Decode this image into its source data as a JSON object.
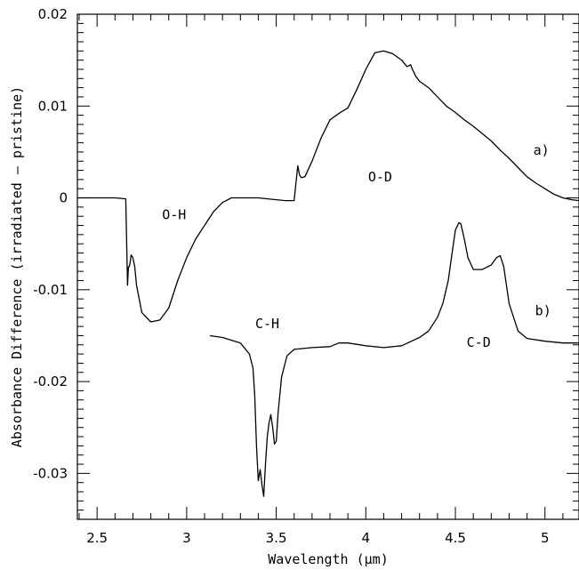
{
  "chart_data": {
    "type": "line",
    "title": "",
    "xlabel": "Wavelength (μm)",
    "ylabel": "Absorbance Difference (irradiated – pristine)",
    "xlim": [
      2.39,
      5.19
    ],
    "ylim": [
      -0.035,
      0.02
    ],
    "x_ticks": [
      {
        "value": 2.5,
        "label": "2.5"
      },
      {
        "value": 3.0,
        "label": "3"
      },
      {
        "value": 3.5,
        "label": "3.5"
      },
      {
        "value": 4.0,
        "label": "4"
      },
      {
        "value": 4.5,
        "label": "4.5"
      },
      {
        "value": 5.0,
        "label": "5"
      }
    ],
    "y_ticks": [
      {
        "value": 0.02,
        "label": "0.02"
      },
      {
        "value": 0.01,
        "label": "0.01"
      },
      {
        "value": 0.0,
        "label": "0"
      },
      {
        "value": -0.01,
        "label": "-0.01"
      },
      {
        "value": -0.02,
        "label": "-0.02"
      },
      {
        "value": -0.03,
        "label": "-0.03"
      }
    ],
    "grid": false,
    "series": [
      {
        "label": "a)",
        "x": [
          2.39,
          2.5,
          2.6,
          2.66,
          2.67,
          2.675,
          2.68,
          2.685,
          2.69,
          2.7,
          2.71,
          2.72,
          2.75,
          2.8,
          2.85,
          2.9,
          2.95,
          3.0,
          3.05,
          3.1,
          3.15,
          3.2,
          3.25,
          3.3,
          3.35,
          3.4,
          3.5,
          3.55,
          3.6,
          3.62,
          3.63,
          3.64,
          3.66,
          3.7,
          3.75,
          3.8,
          3.85,
          3.9,
          3.95,
          4.0,
          4.05,
          4.1,
          4.15,
          4.2,
          4.23,
          4.25,
          4.26,
          4.28,
          4.3,
          4.35,
          4.4,
          4.45,
          4.5,
          4.55,
          4.6,
          4.65,
          4.7,
          4.75,
          4.8,
          4.85,
          4.9,
          4.95,
          5.0,
          5.05,
          5.1,
          5.15,
          5.19
        ],
        "y": [
          0.0,
          0.0,
          0.0,
          -0.0001,
          -0.0095,
          -0.0075,
          -0.0075,
          -0.007,
          -0.0062,
          -0.0065,
          -0.0075,
          -0.0095,
          -0.0125,
          -0.0135,
          -0.0133,
          -0.012,
          -0.009,
          -0.0065,
          -0.0045,
          -0.003,
          -0.0015,
          -0.0005,
          0.0,
          0.0,
          0.0,
          0.0,
          -0.0002,
          -0.0003,
          -0.0003,
          0.0035,
          0.0025,
          0.0022,
          0.0023,
          0.004,
          0.0065,
          0.0085,
          0.0092,
          0.0098,
          0.0118,
          0.014,
          0.0158,
          0.016,
          0.0157,
          0.015,
          0.0143,
          0.0145,
          0.014,
          0.0132,
          0.0127,
          0.012,
          0.011,
          0.01,
          0.0093,
          0.0085,
          0.0078,
          0.007,
          0.0062,
          0.0052,
          0.0043,
          0.0033,
          0.0023,
          0.0016,
          0.001,
          0.0004,
          0.0,
          -0.0002,
          -0.0003
        ]
      },
      {
        "label": "b)",
        "x": [
          3.13,
          3.2,
          3.25,
          3.3,
          3.35,
          3.37,
          3.38,
          3.39,
          3.4,
          3.41,
          3.42,
          3.43,
          3.44,
          3.45,
          3.46,
          3.47,
          3.48,
          3.49,
          3.5,
          3.51,
          3.53,
          3.56,
          3.6,
          3.7,
          3.8,
          3.85,
          3.9,
          4.0,
          4.1,
          4.2,
          4.3,
          4.35,
          4.4,
          4.43,
          4.46,
          4.48,
          4.5,
          4.52,
          4.53,
          4.55,
          4.57,
          4.6,
          4.65,
          4.7,
          4.73,
          4.75,
          4.77,
          4.8,
          4.85,
          4.9,
          5.0,
          5.1,
          5.19
        ],
        "y": [
          -0.015,
          -0.0152,
          -0.0155,
          -0.0158,
          -0.017,
          -0.0185,
          -0.0215,
          -0.027,
          -0.0308,
          -0.0296,
          -0.0312,
          -0.0325,
          -0.029,
          -0.026,
          -0.0245,
          -0.0236,
          -0.025,
          -0.0268,
          -0.0265,
          -0.0235,
          -0.0195,
          -0.0172,
          -0.0165,
          -0.0163,
          -0.0162,
          -0.0158,
          -0.0158,
          -0.0161,
          -0.0163,
          -0.0161,
          -0.0152,
          -0.0145,
          -0.013,
          -0.0115,
          -0.009,
          -0.0062,
          -0.0035,
          -0.0027,
          -0.0028,
          -0.0045,
          -0.0065,
          -0.0078,
          -0.0078,
          -0.0073,
          -0.0065,
          -0.0063,
          -0.0075,
          -0.0115,
          -0.0145,
          -0.0153,
          -0.0156,
          -0.0158,
          -0.0158
        ]
      }
    ],
    "annotations": [
      {
        "text": "O-H",
        "x": 2.93,
        "y": -0.0023
      },
      {
        "text": "O-D",
        "x": 4.08,
        "y": 0.0018
      },
      {
        "text": "C-H",
        "x": 3.45,
        "y": -0.0142
      },
      {
        "text": "C-D",
        "x": 4.63,
        "y": -0.0162
      },
      {
        "text": "a)",
        "x": 4.98,
        "y": 0.0047
      },
      {
        "text": "b)",
        "x": 4.99,
        "y": -0.0128
      }
    ]
  }
}
